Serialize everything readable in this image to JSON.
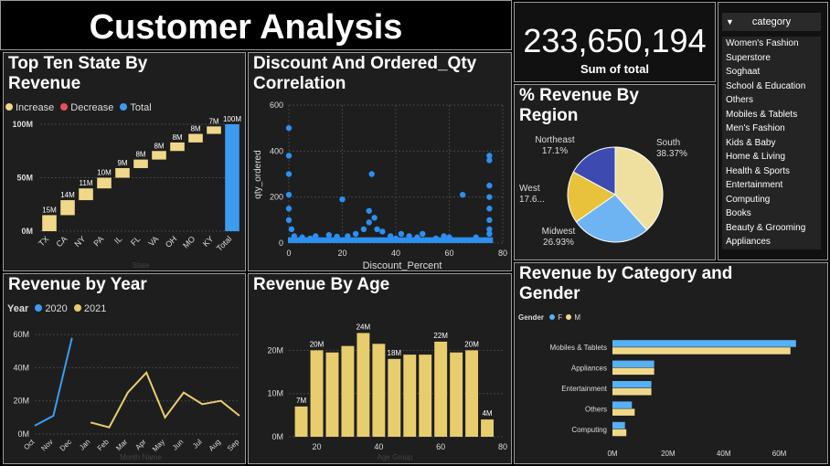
{
  "title": "Customer Analysis",
  "kpi": {
    "value": "233,650,194",
    "label": "Sum of total"
  },
  "slicer": {
    "header": "category",
    "items": [
      "Women's Fashion",
      "Superstore",
      "Soghaat",
      "School & Education",
      "Others",
      "Mobiles & Tablets",
      "Men's Fashion",
      "Kids & Baby",
      "Home & Living",
      "Health & Sports",
      "Entertainment",
      "Computing",
      "Books",
      "Beauty & Grooming",
      "Appliances"
    ]
  },
  "colors": {
    "increase": "#f0d88a",
    "decrease": "#e8505b",
    "total": "#3d9bf0",
    "y2020": "#3d9bf0",
    "y2021": "#e8cd6e",
    "female": "#58b0f5",
    "male": "#f0d88a",
    "bar_age": "#e8cd6e",
    "scatter": "#2d8ff0"
  },
  "chart_data": [
    {
      "type": "bar",
      "subtype": "waterfall",
      "title": "Top Ten State By Revenue",
      "legend": [
        "Increase",
        "Decrease",
        "Total"
      ],
      "categories": [
        "TX",
        "CA",
        "NY",
        "PA",
        "IL",
        "FL",
        "VA",
        "OH",
        "MO",
        "KY",
        "Total"
      ],
      "values": [
        15,
        14,
        11,
        10,
        9,
        8,
        8,
        8,
        8,
        7,
        100
      ],
      "labels": [
        "15M",
        "14M",
        "11M",
        "10M",
        "9M",
        "8M",
        "8M",
        "8M",
        "8M",
        "7M",
        "100M"
      ],
      "yticks": [
        "0M",
        "50M",
        "100M"
      ],
      "ylim": [
        0,
        100
      ],
      "xlabel": "State"
    },
    {
      "type": "scatter",
      "title": "Discount And Ordered_Qty Correlation",
      "xlabel": "Discount_Percent",
      "ylabel": "qty_ordered",
      "xlim": [
        0,
        80
      ],
      "ylim": [
        0,
        600
      ],
      "xticks": [
        0,
        20,
        40,
        60,
        80
      ],
      "yticks": [
        0,
        200,
        400,
        600
      ],
      "points": [
        [
          0,
          500
        ],
        [
          0,
          380
        ],
        [
          0,
          300
        ],
        [
          0,
          210
        ],
        [
          0,
          150
        ],
        [
          0,
          100
        ],
        [
          1,
          60
        ],
        [
          2,
          30
        ],
        [
          5,
          25
        ],
        [
          8,
          20
        ],
        [
          10,
          30
        ],
        [
          15,
          35
        ],
        [
          18,
          28
        ],
        [
          20,
          190
        ],
        [
          22,
          30
        ],
        [
          25,
          40
        ],
        [
          28,
          60
        ],
        [
          30,
          90
        ],
        [
          30,
          140
        ],
        [
          31,
          300
        ],
        [
          32,
          110
        ],
        [
          33,
          60
        ],
        [
          35,
          50
        ],
        [
          38,
          30
        ],
        [
          40,
          20
        ],
        [
          42,
          40
        ],
        [
          45,
          30
        ],
        [
          48,
          25
        ],
        [
          50,
          40
        ],
        [
          55,
          20
        ],
        [
          58,
          30
        ],
        [
          60,
          25
        ],
        [
          65,
          210
        ],
        [
          70,
          25
        ],
        [
          75,
          380
        ],
        [
          75,
          360
        ],
        [
          75,
          250
        ],
        [
          75,
          200
        ],
        [
          75,
          150
        ],
        [
          75,
          100
        ],
        [
          75,
          60
        ],
        [
          75,
          40
        ]
      ]
    },
    {
      "type": "pie",
      "title": "% Revenue By Region",
      "categories": [
        "South",
        "Midwest",
        "West",
        "Northeast"
      ],
      "values": [
        38.37,
        26.93,
        17.6,
        17.1
      ],
      "labels": [
        "38.37%",
        "26.93%",
        "17.6...",
        "17.1%"
      ],
      "colors": [
        "#f0e0a0",
        "#6fb4f2",
        "#e8c23a",
        "#3d4bb0"
      ]
    },
    {
      "type": "line",
      "title": "Revenue by Year",
      "legend_title": "Year",
      "categories": [
        "Oct",
        "Nov",
        "Dec",
        "Jan",
        "Feb",
        "Mar",
        "Apr",
        "May",
        "Jun",
        "Jul",
        "Aug",
        "Sep"
      ],
      "series": [
        {
          "name": "2020",
          "values": [
            5,
            11,
            58,
            null,
            null,
            null,
            null,
            null,
            null,
            null,
            null,
            null
          ]
        },
        {
          "name": "2021",
          "values": [
            null,
            null,
            null,
            7,
            4,
            25,
            37,
            10,
            25,
            18,
            20,
            11
          ]
        }
      ],
      "yticks": [
        "0M",
        "20M",
        "40M",
        "60M"
      ],
      "ylim": [
        0,
        65
      ],
      "xlabel": "Month Name"
    },
    {
      "type": "bar",
      "title": "Revenue By Age",
      "x": [
        15,
        20,
        25,
        30,
        35,
        40,
        45,
        50,
        55,
        60,
        65,
        70,
        75
      ],
      "values": [
        7,
        20,
        19.5,
        21,
        24,
        21.5,
        18,
        19,
        19,
        22,
        19.5,
        20,
        4
      ],
      "labels": [
        "7M",
        "20M",
        "",
        "",
        "24M",
        "",
        "18M",
        "",
        "",
        "22M",
        "",
        "20M",
        "4M"
      ],
      "xticks": [
        20,
        40,
        60,
        80
      ],
      "yticks": [
        "0M",
        "10M",
        "20M"
      ],
      "ylim": [
        0,
        26
      ],
      "xlabel": "Age Group"
    },
    {
      "type": "bar",
      "orientation": "horizontal",
      "title": "Revenue by Category and Gender",
      "legend_title": "Gender",
      "categories": [
        "Mobiles & Tablets",
        "Appliances",
        "Entertainment",
        "Others",
        "Computing"
      ],
      "series": [
        {
          "name": "F",
          "values": [
            66,
            15,
            14,
            7,
            4.5
          ]
        },
        {
          "name": "M",
          "values": [
            64,
            15,
            14,
            8,
            5
          ]
        }
      ],
      "xticks": [
        "0M",
        "20M",
        "40M",
        "60M"
      ],
      "xlim": [
        0,
        70
      ]
    }
  ]
}
